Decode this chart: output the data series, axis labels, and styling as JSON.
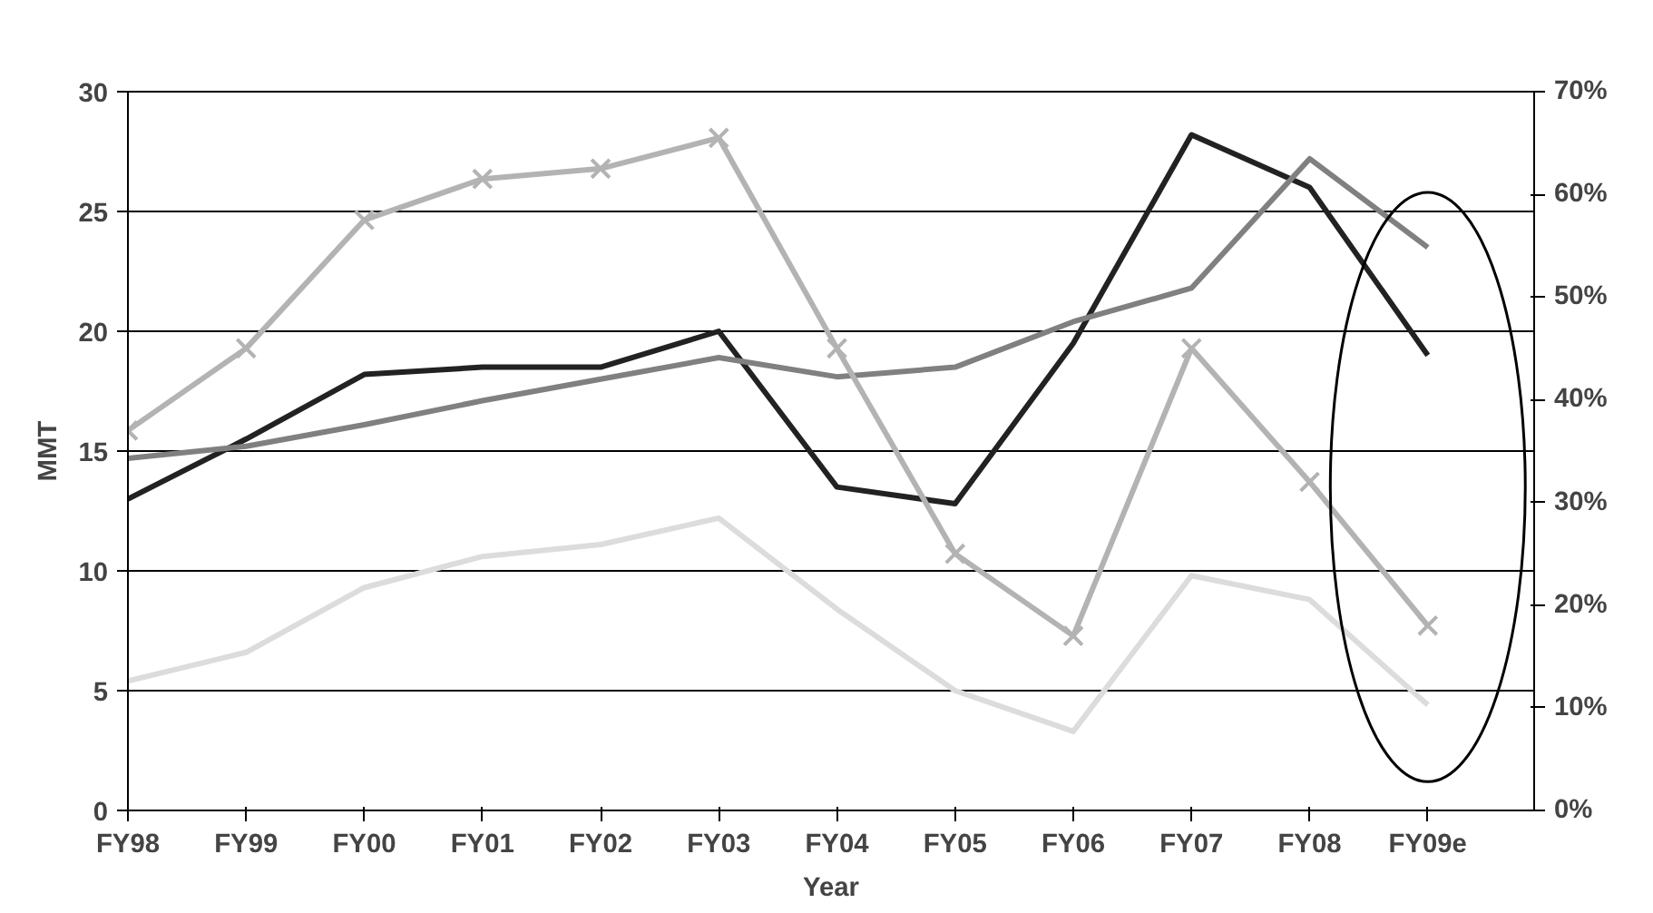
{
  "chart_data": {
    "type": "line",
    "xlabel": "Year",
    "ylabel": "MMT",
    "categories": [
      "FY98",
      "FY99",
      "FY00",
      "FY01",
      "FY02",
      "FY03",
      "FY04",
      "FY05",
      "FY06",
      "FY07",
      "FY08",
      "FY09e"
    ],
    "series": [
      {
        "color": "#222222",
        "values": [
          13,
          15.5,
          18.2,
          18.5,
          18.5,
          20,
          13.5,
          12.8,
          19.5,
          28.2,
          26,
          19
        ]
      },
      {
        "color": "#808080",
        "values": [
          14.7,
          15.2,
          16.1,
          17.1,
          18,
          18.9,
          18.1,
          18.5,
          20.4,
          21.8,
          27.2,
          23.5
        ]
      },
      {
        "color": "#b3b3b3",
        "axis": "y2",
        "marker": "cross",
        "values": [
          37,
          45,
          57.5,
          61.5,
          62.5,
          65.5,
          45,
          25,
          17,
          45,
          32,
          18
        ]
      },
      {
        "color": "#dcdcdc",
        "values": [
          5.4,
          6.6,
          9.3,
          10.6,
          11.1,
          12.2,
          8.4,
          5,
          3.3,
          9.8,
          8.8,
          4.4
        ]
      }
    ],
    "ylim": [
      0,
      30
    ],
    "yticks": [
      0,
      5,
      10,
      15,
      20,
      25,
      30
    ],
    "y2lim": [
      0,
      70
    ],
    "y2ticks": [
      {
        "value": 0,
        "label": "0%"
      },
      {
        "value": 10,
        "label": "10%"
      },
      {
        "value": 20,
        "label": "20%"
      },
      {
        "value": 30,
        "label": "30%"
      },
      {
        "value": 40,
        "label": "40%"
      },
      {
        "value": 50,
        "label": "50%"
      },
      {
        "value": 60,
        "label": "60%"
      },
      {
        "value": 70,
        "label": "70%"
      }
    ],
    "grid": "y",
    "line_style": "solid"
  }
}
